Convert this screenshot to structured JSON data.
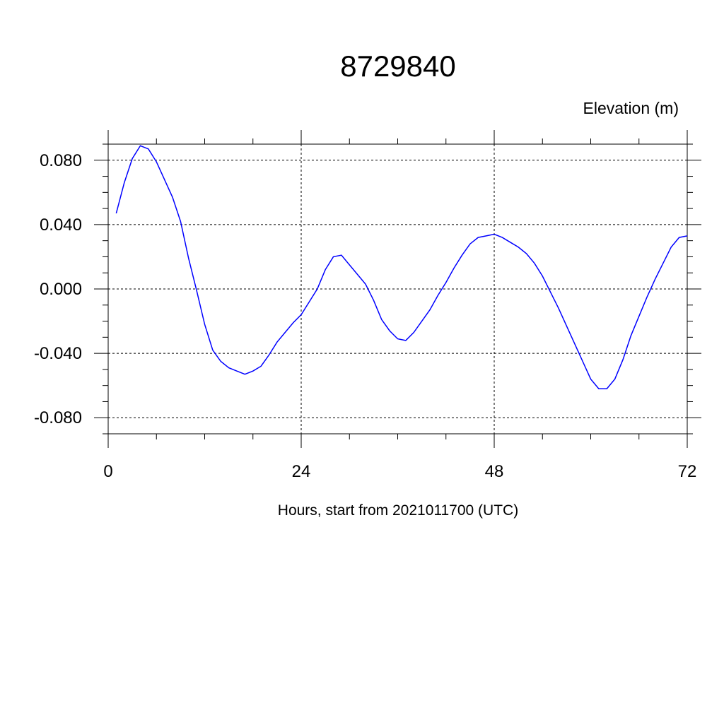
{
  "chart_data": {
    "type": "line",
    "title": "8729840",
    "ylabel": "Elevation (m)",
    "xlabel": "Hours, start from 2021011700 (UTC)",
    "x": [
      1,
      2,
      3,
      4,
      5,
      6,
      7,
      8,
      9,
      10,
      11,
      12,
      13,
      14,
      15,
      16,
      17,
      18,
      19,
      20,
      21,
      22,
      23,
      24,
      25,
      26,
      27,
      28,
      29,
      30,
      31,
      32,
      33,
      34,
      35,
      36,
      37,
      38,
      39,
      40,
      41,
      42,
      43,
      44,
      45,
      46,
      47,
      48,
      49,
      50,
      51,
      52,
      53,
      54,
      55,
      56,
      57,
      58,
      59,
      60,
      61,
      62,
      63,
      64,
      65,
      66,
      67,
      68,
      69,
      70,
      71,
      72
    ],
    "series": [
      {
        "color": "#0000ff",
        "values": [
          0.047,
          0.066,
          0.081,
          0.089,
          0.087,
          0.079,
          0.068,
          0.057,
          0.042,
          0.019,
          -0.001,
          -0.022,
          -0.038,
          -0.045,
          -0.049,
          -0.051,
          -0.053,
          -0.051,
          -0.048,
          -0.041,
          -0.033,
          -0.027,
          -0.021,
          -0.016,
          -0.008,
          0.0,
          0.012,
          0.02,
          0.021,
          0.015,
          0.009,
          0.003,
          -0.007,
          -0.019,
          -0.026,
          -0.031,
          -0.032,
          -0.027,
          -0.02,
          -0.013,
          -0.004,
          0.004,
          0.013,
          0.021,
          0.028,
          0.032,
          0.033,
          0.034,
          0.032,
          0.029,
          0.026,
          0.022,
          0.016,
          0.008,
          -0.002,
          -0.012,
          -0.023,
          -0.034,
          -0.045,
          -0.056,
          -0.062,
          -0.062,
          -0.056,
          -0.044,
          -0.029,
          -0.017,
          -0.005,
          0.006,
          0.016,
          0.026,
          0.032,
          0.033
        ]
      }
    ],
    "xlim": [
      0,
      72
    ],
    "xticks": [
      0,
      24,
      48,
      72
    ],
    "xminorticks": [
      6,
      12,
      18,
      30,
      36,
      42,
      54,
      60,
      66
    ],
    "ylim": [
      -0.09,
      0.09
    ],
    "yticks": [
      {
        "value": -0.08,
        "label": "-0.080"
      },
      {
        "value": -0.04,
        "label": "-0.040"
      },
      {
        "value": 0,
        "label": "0.000"
      },
      {
        "value": 0.04,
        "label": "0.040"
      },
      {
        "value": 0.08,
        "label": "0.080"
      }
    ],
    "yminorticks": [
      -0.09,
      -0.07,
      -0.06,
      -0.05,
      -0.03,
      -0.02,
      -0.01,
      0.01,
      0.02,
      0.03,
      0.05,
      0.06,
      0.07,
      0.09
    ],
    "grid": true
  }
}
